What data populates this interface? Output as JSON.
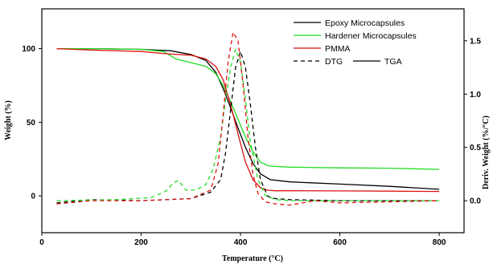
{
  "chart_data": {
    "type": "line",
    "xlabel": "Temperature (°C)",
    "ylabel_left": "Weight (%)",
    "ylabel_right": "Deriv. Weight (%/°C)",
    "xlim": [
      0,
      850
    ],
    "xticks": [
      0,
      200,
      400,
      600,
      800
    ],
    "ylim_left": [
      -25,
      127
    ],
    "yticks_left": [
      0,
      50,
      100
    ],
    "ylim_right": [
      -0.3,
      1.8
    ],
    "yticks_right": [
      "0.0",
      "0.5",
      "1.0",
      "1.5"
    ],
    "grid": false,
    "legend_position": "top-right",
    "legend": [
      {
        "label": "Epoxy Microcapsules",
        "color": "#000000",
        "dash": "solid"
      },
      {
        "label": "Hardener Microcapsules",
        "color": "#22dd22",
        "dash": "solid"
      },
      {
        "label": "PMMA",
        "color": "#dd1111",
        "dash": "solid"
      },
      {
        "label": "DTG",
        "color": "#000000",
        "dash": "dashed"
      },
      {
        "label": "TGA",
        "color": "#000000",
        "dash": "solid"
      }
    ],
    "series": [
      {
        "name": "Epoxy Microcapsules",
        "kind": "TGA",
        "axis": "left",
        "color": "#000000",
        "x": [
          30,
          100,
          200,
          260,
          300,
          330,
          350,
          365,
          380,
          395,
          410,
          425,
          440,
          460,
          500,
          600,
          700,
          800
        ],
        "y": [
          100,
          100,
          99.5,
          98.5,
          96,
          92,
          84,
          73,
          60,
          46,
          33,
          22,
          15,
          11,
          9.5,
          8,
          6.5,
          4.5
        ]
      },
      {
        "name": "Hardener Microcapsules",
        "kind": "TGA",
        "axis": "left",
        "color": "#22dd22",
        "x": [
          30,
          100,
          200,
          245,
          270,
          300,
          330,
          350,
          365,
          380,
          395,
          410,
          425,
          440,
          455,
          470,
          500,
          600,
          700,
          800
        ],
        "y": [
          100,
          100,
          99.5,
          98,
          93,
          90.5,
          88,
          83,
          75,
          64,
          52,
          40,
          30,
          23,
          20.5,
          20,
          19.5,
          19,
          18.8,
          18
        ]
      },
      {
        "name": "PMMA",
        "kind": "TGA",
        "axis": "left",
        "color": "#dd1111",
        "x": [
          30,
          100,
          200,
          250,
          300,
          330,
          350,
          365,
          380,
          395,
          410,
          425,
          440,
          455,
          470,
          500,
          600,
          700,
          800
        ],
        "y": [
          100,
          99,
          98,
          96.5,
          95.5,
          93,
          88,
          79,
          62,
          42,
          23,
          11,
          5.5,
          3.8,
          3.5,
          3.5,
          3.4,
          3.2,
          3
        ]
      },
      {
        "name": "Epoxy Microcapsules",
        "kind": "DTG",
        "axis": "right",
        "color": "#000000",
        "x": [
          30,
          100,
          200,
          300,
          340,
          360,
          370,
          380,
          390,
          400,
          410,
          420,
          430,
          440,
          455,
          470,
          500,
          600,
          700,
          800
        ],
        "y": [
          -0.02,
          0.01,
          0.0,
          0.02,
          0.08,
          0.2,
          0.45,
          0.85,
          1.25,
          1.4,
          1.25,
          0.9,
          0.5,
          0.2,
          0.04,
          0.02,
          0.01,
          0.0,
          0.0,
          0.0
        ]
      },
      {
        "name": "Hardener Microcapsules",
        "kind": "DTG",
        "axis": "right",
        "color": "#22dd22",
        "x": [
          30,
          150,
          220,
          250,
          265,
          275,
          290,
          310,
          330,
          345,
          360,
          370,
          380,
          390,
          400,
          410,
          420,
          435,
          450,
          470,
          500,
          600,
          700,
          800
        ],
        "y": [
          0.0,
          0.01,
          0.03,
          0.09,
          0.17,
          0.19,
          0.1,
          0.1,
          0.15,
          0.3,
          0.6,
          0.95,
          1.25,
          1.42,
          1.3,
          0.95,
          0.55,
          0.2,
          0.05,
          0.01,
          0.0,
          0.0,
          0.0,
          0.0
        ]
      },
      {
        "name": "PMMA",
        "kind": "DTG",
        "axis": "right",
        "color": "#dd1111",
        "x": [
          30,
          100,
          200,
          300,
          340,
          355,
          365,
          375,
          385,
          395,
          405,
          415,
          425,
          435,
          450,
          470,
          500,
          550,
          600,
          700,
          800
        ],
        "y": [
          -0.03,
          0.0,
          0.0,
          0.02,
          0.1,
          0.35,
          0.8,
          1.3,
          1.58,
          1.5,
          1.1,
          0.6,
          0.25,
          0.07,
          -0.01,
          -0.03,
          -0.04,
          0.0,
          -0.02,
          -0.01,
          0.0
        ]
      }
    ]
  }
}
